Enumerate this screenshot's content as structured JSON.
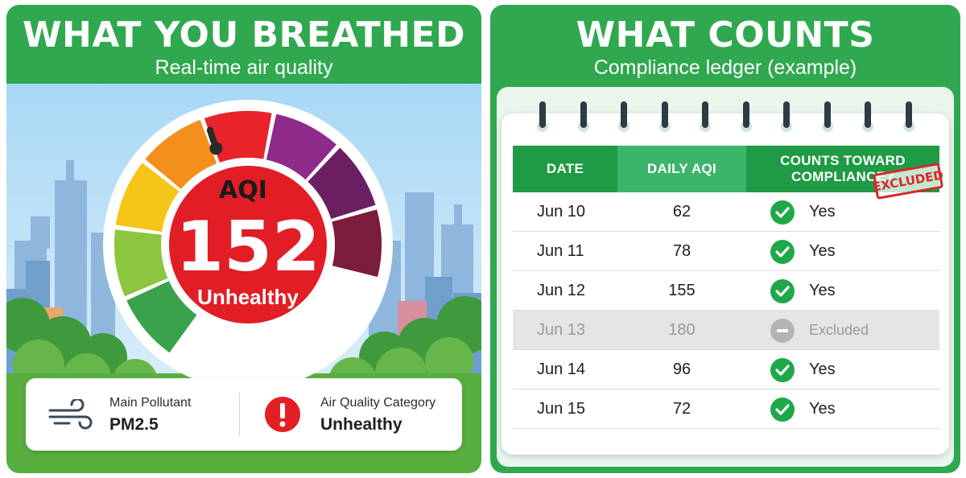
{
  "left": {
    "title": "WHAT YOU BREATHED",
    "subtitle": "Real-time air quality",
    "gauge": {
      "label": "AQI",
      "value": "152",
      "status": "Unhealthy",
      "segment_colors": [
        "#3aa24a",
        "#8cc63f",
        "#f5c518",
        "#f3901d",
        "#e8232a",
        "#8e2b8a",
        "#6b1f63",
        "#7a1c3a"
      ]
    },
    "cards": {
      "pollutant_label": "Main Pollutant",
      "pollutant_value": "PM2.5",
      "category_label": "Air Quality Category",
      "category_value": "Unhealthy"
    }
  },
  "right": {
    "title": "WHAT COUNTS",
    "subtitle": "Compliance ledger (example)",
    "headers": [
      "DATE",
      "DAILY AQI",
      "COUNTS TOWARD COMPLIANCE?"
    ],
    "rows": [
      {
        "date": "Jun 10",
        "aqi": "62",
        "status": "Yes"
      },
      {
        "date": "Jun 11",
        "aqi": "78",
        "status": "Yes"
      },
      {
        "date": "Jun 12",
        "aqi": "155",
        "status": "Yes"
      },
      {
        "date": "Jun 13",
        "aqi": "180",
        "status": "Excluded"
      },
      {
        "date": "Jun 14",
        "aqi": "96",
        "status": "Yes"
      },
      {
        "date": "Jun 15",
        "aqi": "72",
        "status": "Yes"
      }
    ],
    "stamp": "EXCLUDED"
  },
  "colors": {
    "brand_green": "#2fa84f",
    "check_green": "#1fa84a",
    "stamp_red": "#d6282e"
  }
}
